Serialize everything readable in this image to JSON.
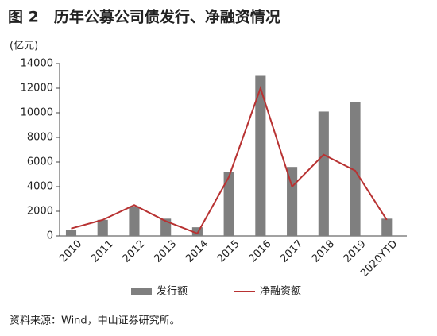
{
  "chart_data": {
    "type": "combo",
    "title": "图 2　历年公募公司债发行、净融资情况",
    "y_axis_label": "(亿元)",
    "source": "资料来源：Wind，中山证券研究所。",
    "categories": [
      "2010",
      "2011",
      "2012",
      "2013",
      "2014",
      "2015",
      "2016",
      "2017",
      "2018",
      "2019",
      "2020YTD"
    ],
    "series": [
      {
        "name": "发行额",
        "type": "bar",
        "color": "#7f7f7f",
        "values": [
          500,
          1300,
          2400,
          1400,
          700,
          5200,
          13000,
          5600,
          10100,
          10900,
          1400
        ]
      },
      {
        "name": "净融资额",
        "type": "line",
        "color": "#b83232",
        "values": [
          600,
          1300,
          2500,
          1200,
          200,
          4800,
          12000,
          4000,
          6600,
          5300,
          1300
        ]
      }
    ],
    "ylim": [
      0,
      14000
    ],
    "yticks": [
      0,
      2000,
      4000,
      6000,
      8000,
      10000,
      12000,
      14000
    ]
  }
}
